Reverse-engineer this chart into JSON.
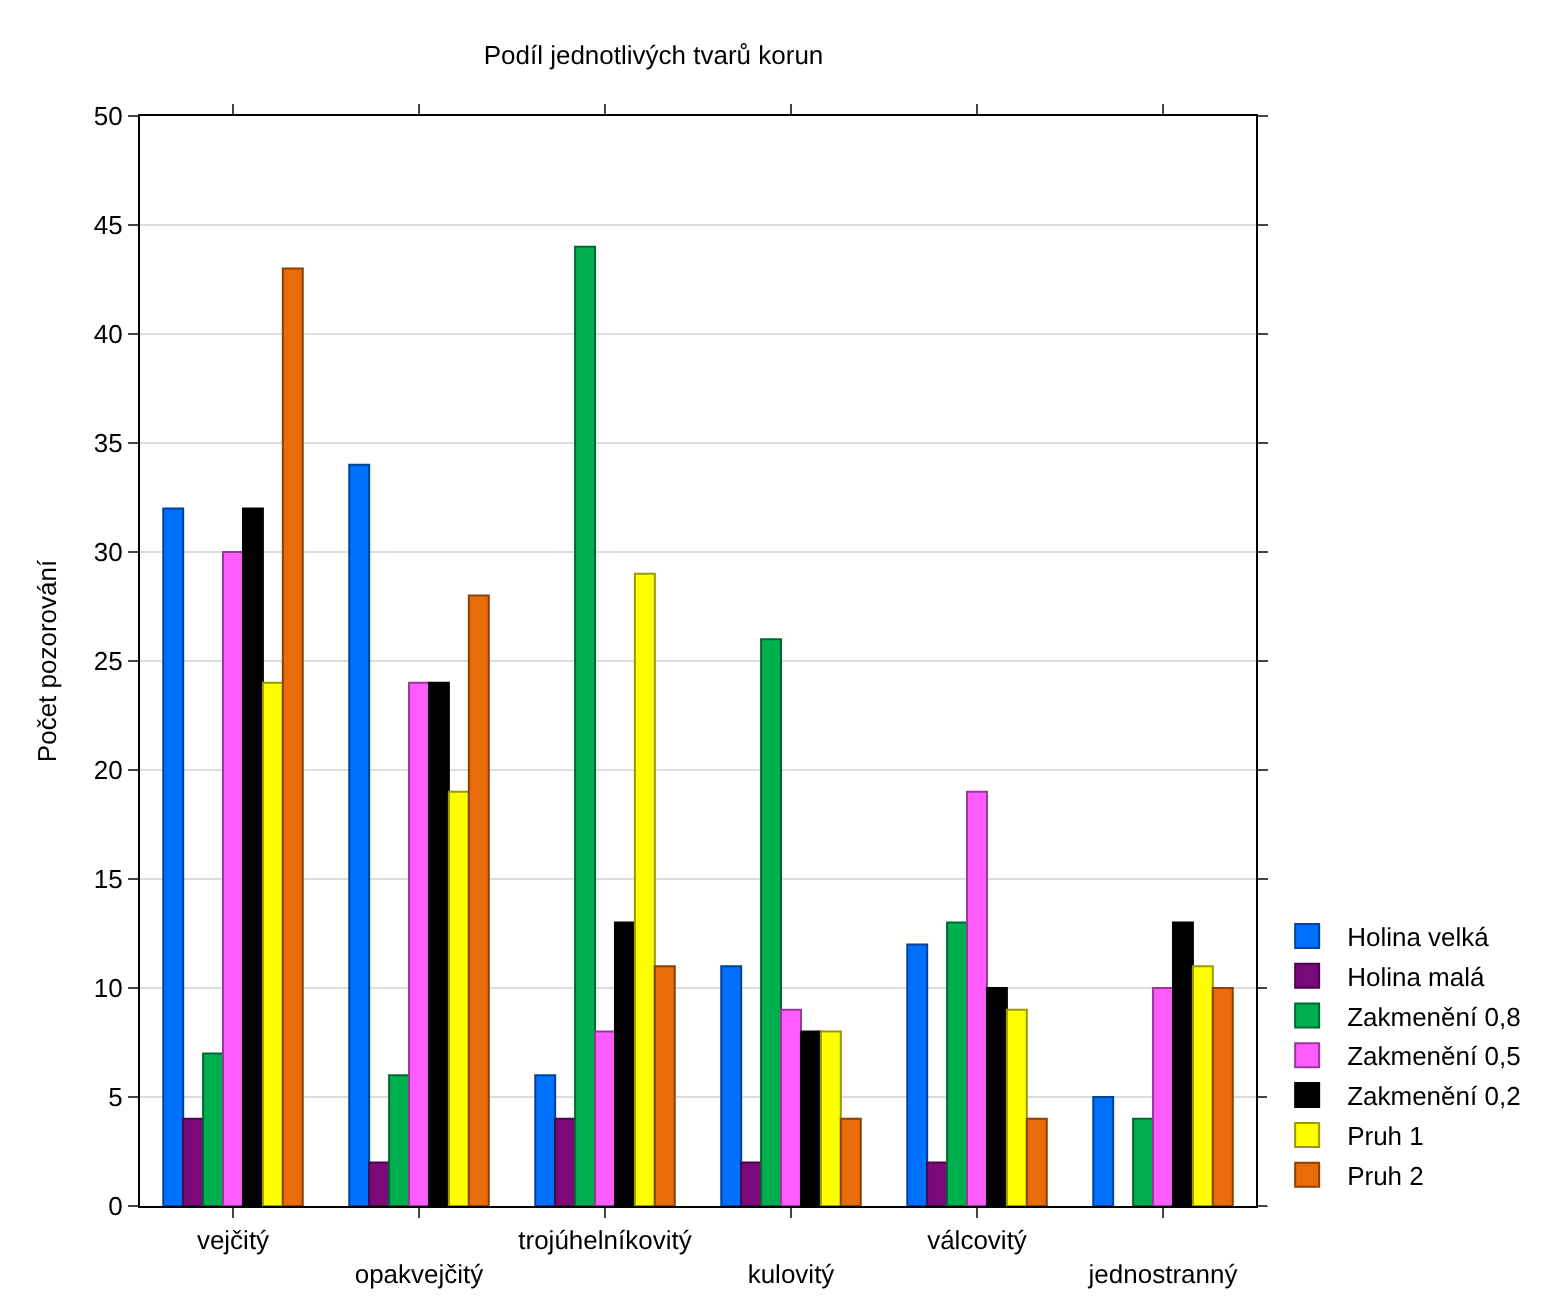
{
  "chart_data": {
    "type": "bar",
    "title": "Podíl jednotlivých tvarů korun",
    "ylabel": "Počet pozorování",
    "categories": [
      "vejčitý",
      "opakvejčitý",
      "trojúhelníkovitý",
      "kulovitý",
      "válcovitý",
      "jednostranný"
    ],
    "series": [
      {
        "name": "Holina velká",
        "color": "#0070ff",
        "values": [
          32,
          34,
          6,
          11,
          12,
          5
        ]
      },
      {
        "name": "Holina malá",
        "color": "#7a0a7a",
        "values": [
          4,
          2,
          4,
          2,
          2,
          0
        ]
      },
      {
        "name": "Zakmenění 0,8",
        "color": "#00b050",
        "values": [
          7,
          6,
          44,
          26,
          13,
          4
        ]
      },
      {
        "name": "Zakmenění 0,5",
        "color": "#ff5cff",
        "values": [
          30,
          24,
          8,
          9,
          19,
          10
        ]
      },
      {
        "name": "Zakmenění 0,2",
        "color": "#000000",
        "values": [
          32,
          24,
          13,
          8,
          10,
          13
        ]
      },
      {
        "name": "Pruh 1",
        "color": "#ffff00",
        "values": [
          24,
          19,
          29,
          8,
          9,
          11
        ]
      },
      {
        "name": "Pruh 2",
        "color": "#e86c0a",
        "values": [
          43,
          28,
          11,
          4,
          4,
          10
        ]
      }
    ],
    "ylim": [
      0,
      50
    ],
    "yticks": [
      0,
      5,
      10,
      15,
      20,
      25,
      30,
      35,
      40,
      45,
      50
    ],
    "grid": "y",
    "legend": "bottom right"
  }
}
